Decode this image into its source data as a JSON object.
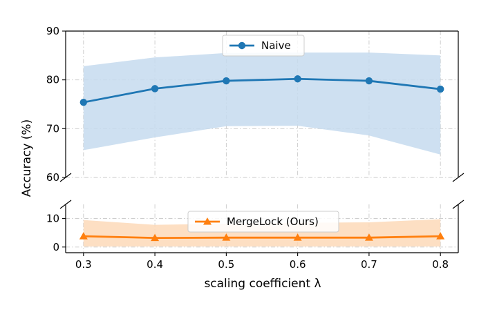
{
  "chart_data": {
    "type": "line",
    "layout": "broken-y-axis",
    "x": [
      0.3,
      0.4,
      0.5,
      0.6,
      0.7,
      0.8
    ],
    "xlabel": "scaling coefficient λ",
    "ylabel": "Accuracy (%)",
    "grid": true,
    "panels": [
      {
        "name": "upper",
        "ylim": [
          60,
          90
        ],
        "yticks": [
          60,
          70,
          80,
          90
        ],
        "legend_position": "top-center"
      },
      {
        "name": "lower",
        "ylim": [
          -2,
          15
        ],
        "yticks": [
          0,
          10
        ],
        "legend_position": "top-center"
      }
    ],
    "series": [
      {
        "name": "Naive",
        "panel": "upper",
        "marker": "circle",
        "color": "#1f77b4",
        "band_color": "#c6dbef",
        "values": [
          75.4,
          78.2,
          79.8,
          80.2,
          79.8,
          78.1
        ],
        "lower": [
          65.6,
          68.2,
          70.5,
          70.6,
          68.6,
          64.7
        ],
        "upper": [
          82.8,
          84.6,
          85.5,
          85.6,
          85.6,
          85.0
        ]
      },
      {
        "name": "MergeLock (Ours)",
        "panel": "lower",
        "marker": "triangle",
        "color": "#ff7f0e",
        "band_color": "#fdd9b8",
        "values": [
          3.8,
          3.2,
          3.3,
          3.3,
          3.3,
          3.8
        ],
        "lower": [
          0.2,
          0.2,
          0.2,
          0.2,
          0.2,
          0.2
        ],
        "upper": [
          9.5,
          7.8,
          8.2,
          8.5,
          8.7,
          9.8
        ]
      }
    ]
  }
}
